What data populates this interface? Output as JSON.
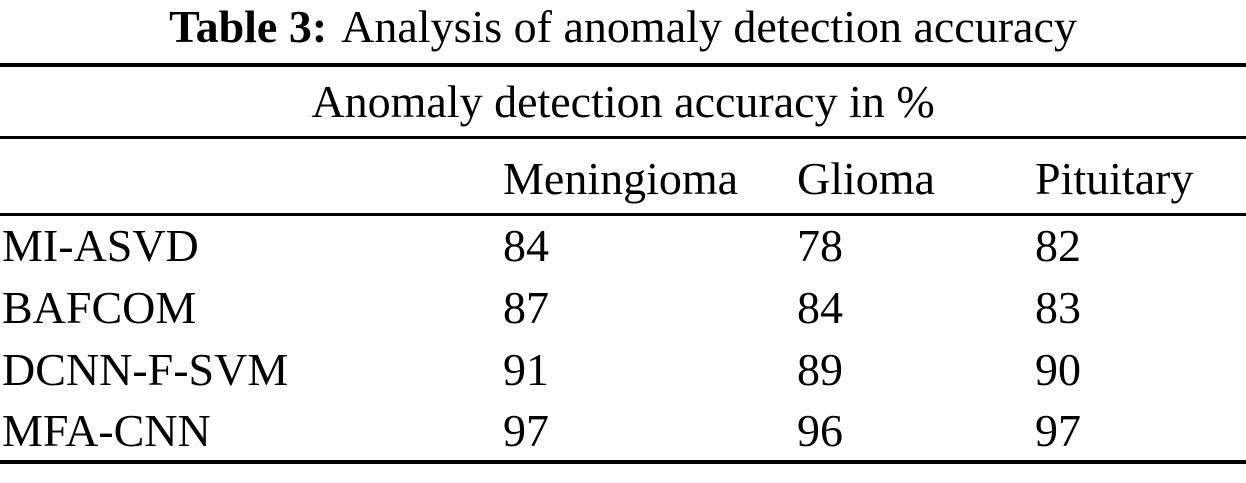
{
  "table": {
    "caption": {
      "label": "Table 3:",
      "text": "Analysis of anomaly detection accuracy"
    },
    "span_header": "Anomaly detection accuracy in %",
    "columns": [
      "",
      "Meningioma",
      "Glioma",
      "Pituitary"
    ],
    "rows": [
      {
        "method": "MI-ASVD",
        "values": [
          "84",
          "78",
          "82"
        ]
      },
      {
        "method": "BAFCOM",
        "values": [
          "87",
          "84",
          "83"
        ]
      },
      {
        "method": "DCNN-F-SVM",
        "values": [
          "91",
          "89",
          "90"
        ]
      },
      {
        "method": "MFA-CNN",
        "values": [
          "97",
          "96",
          "97"
        ]
      }
    ]
  },
  "colors": {
    "text": "#000000",
    "background": "#ffffff",
    "rule": "#000000"
  }
}
